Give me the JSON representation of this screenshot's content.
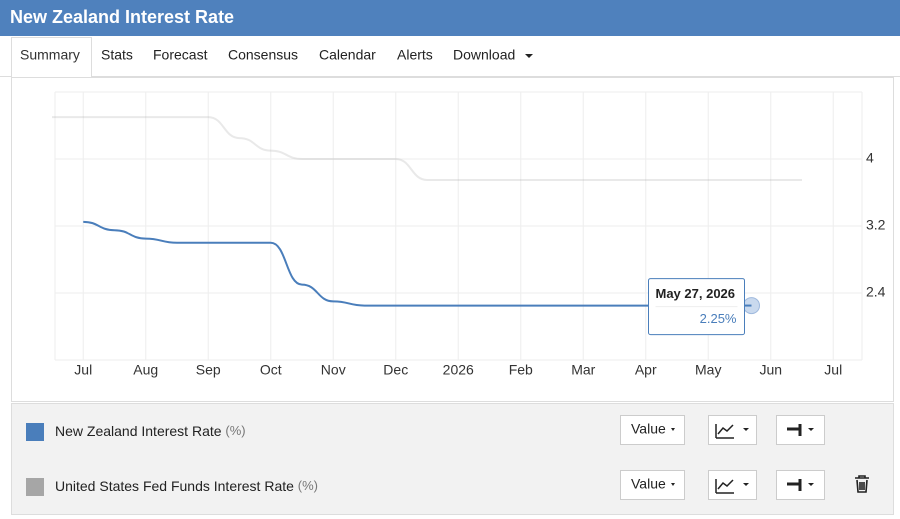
{
  "header": {
    "title": "New Zealand Interest Rate"
  },
  "tabs": [
    "Summary",
    "Stats",
    "Forecast",
    "Consensus",
    "Calendar",
    "Alerts",
    "Download"
  ],
  "chart_data": {
    "type": "line",
    "categories": [
      null,
      "Jul",
      null,
      "Aug",
      null,
      "Sep",
      null,
      "Oct",
      null,
      "Nov",
      null,
      "Dec",
      null,
      "2026",
      null,
      "Feb",
      null,
      "Mar",
      null,
      "Apr",
      null,
      "May",
      null,
      "Jun",
      null,
      "Jul",
      null
    ],
    "series": [
      {
        "name": "New Zealand Interest Rate",
        "unit": "(%)",
        "color": "#4a7ebb",
        "values": [
          null,
          3.25,
          3.15,
          3.05,
          3.0,
          3.0,
          3.0,
          3.0,
          2.5,
          2.3,
          2.25,
          2.25,
          2.25,
          2.25,
          2.25,
          2.25,
          2.25,
          2.25,
          2.25,
          2.25,
          2.25,
          2.25,
          2.25,
          null,
          null,
          null,
          null
        ]
      },
      {
        "name": "United States Fed Funds Interest Rate",
        "unit": "(%)",
        "color": "#a6a6a6",
        "values": [
          4.5,
          4.5,
          4.5,
          4.5,
          4.5,
          4.5,
          4.25,
          4.1,
          4.0,
          4.0,
          4.0,
          4.0,
          3.75,
          3.75,
          3.75,
          3.75,
          3.75,
          3.75,
          3.75,
          3.75,
          3.75,
          3.75,
          3.75,
          3.75,
          3.75,
          null,
          null
        ]
      }
    ],
    "highlighted_series": 0,
    "ylim": [
      1.6,
      4.8
    ],
    "yticks": [
      2.4,
      3.2,
      4
    ],
    "grid": true,
    "tooltip": {
      "date": "May 27, 2026",
      "value_label": "2.25%"
    }
  },
  "series_controls": [
    {
      "mode": "Value"
    },
    {
      "mode": "Value"
    }
  ]
}
